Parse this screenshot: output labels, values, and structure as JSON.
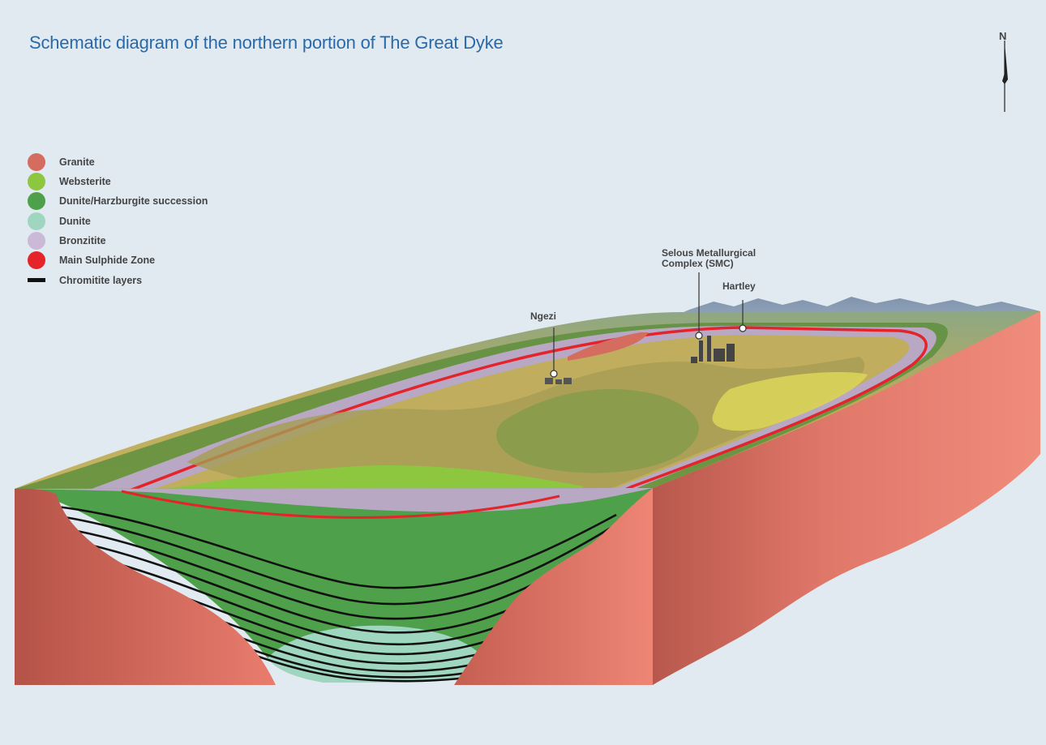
{
  "title": "Schematic diagram of the northern portion of The Great Dyke",
  "north_label": "N",
  "legend": [
    {
      "label": "Granite",
      "color": "#d46d60",
      "shape": "circle"
    },
    {
      "label": "Websterite",
      "color": "#8dc63f",
      "shape": "circle"
    },
    {
      "label": "Dunite/Harzburgite succession",
      "color": "#4fa04a",
      "shape": "circle"
    },
    {
      "label": "Dunite",
      "color": "#9ed6c0",
      "shape": "circle"
    },
    {
      "label": "Bronzitite",
      "color": "#cbb9d8",
      "shape": "circle"
    },
    {
      "label": "Main Sulphide Zone",
      "color": "#e4232b",
      "shape": "circle"
    },
    {
      "label": "Chromitite layers",
      "color": "#111111",
      "shape": "bar"
    }
  ],
  "callouts": {
    "smc_line1": "Selous Metallurgical",
    "smc_line2": "Complex (SMC)",
    "hartley": "Hartley",
    "ngezi": "Ngezi"
  }
}
